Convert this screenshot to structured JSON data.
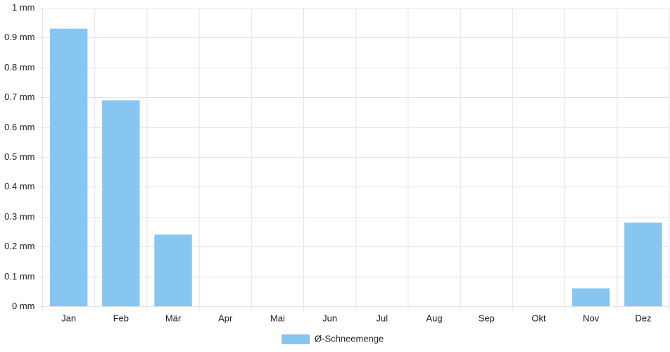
{
  "chart_data": {
    "type": "bar",
    "categories": [
      "Jan",
      "Feb",
      "Mär",
      "Apr",
      "Mai",
      "Jun",
      "Jul",
      "Aug",
      "Sep",
      "Okt",
      "Nov",
      "Dez"
    ],
    "series": [
      {
        "name": "Ø-Schneemenge",
        "color": "#88c6f2",
        "values": [
          0.93,
          0.69,
          0.24,
          0,
          0,
          0,
          0,
          0,
          0,
          0,
          0.06,
          0.28
        ]
      }
    ],
    "ylim": [
      0,
      1
    ],
    "yticks": [
      {
        "value": 0,
        "label": "0 mm"
      },
      {
        "value": 0.1,
        "label": "0.1 mm"
      },
      {
        "value": 0.2,
        "label": "0.2 mm"
      },
      {
        "value": 0.3,
        "label": "0.3 mm"
      },
      {
        "value": 0.4,
        "label": "0.4 mm"
      },
      {
        "value": 0.5,
        "label": "0.5 mm"
      },
      {
        "value": 0.6,
        "label": "0.6 mm"
      },
      {
        "value": 0.7,
        "label": "0.7 mm"
      },
      {
        "value": 0.8,
        "label": "0.8 mm"
      },
      {
        "value": 0.9,
        "label": "0.9 mm"
      },
      {
        "value": 1,
        "label": "1 mm"
      }
    ],
    "grid": true,
    "legend": "bottom"
  }
}
